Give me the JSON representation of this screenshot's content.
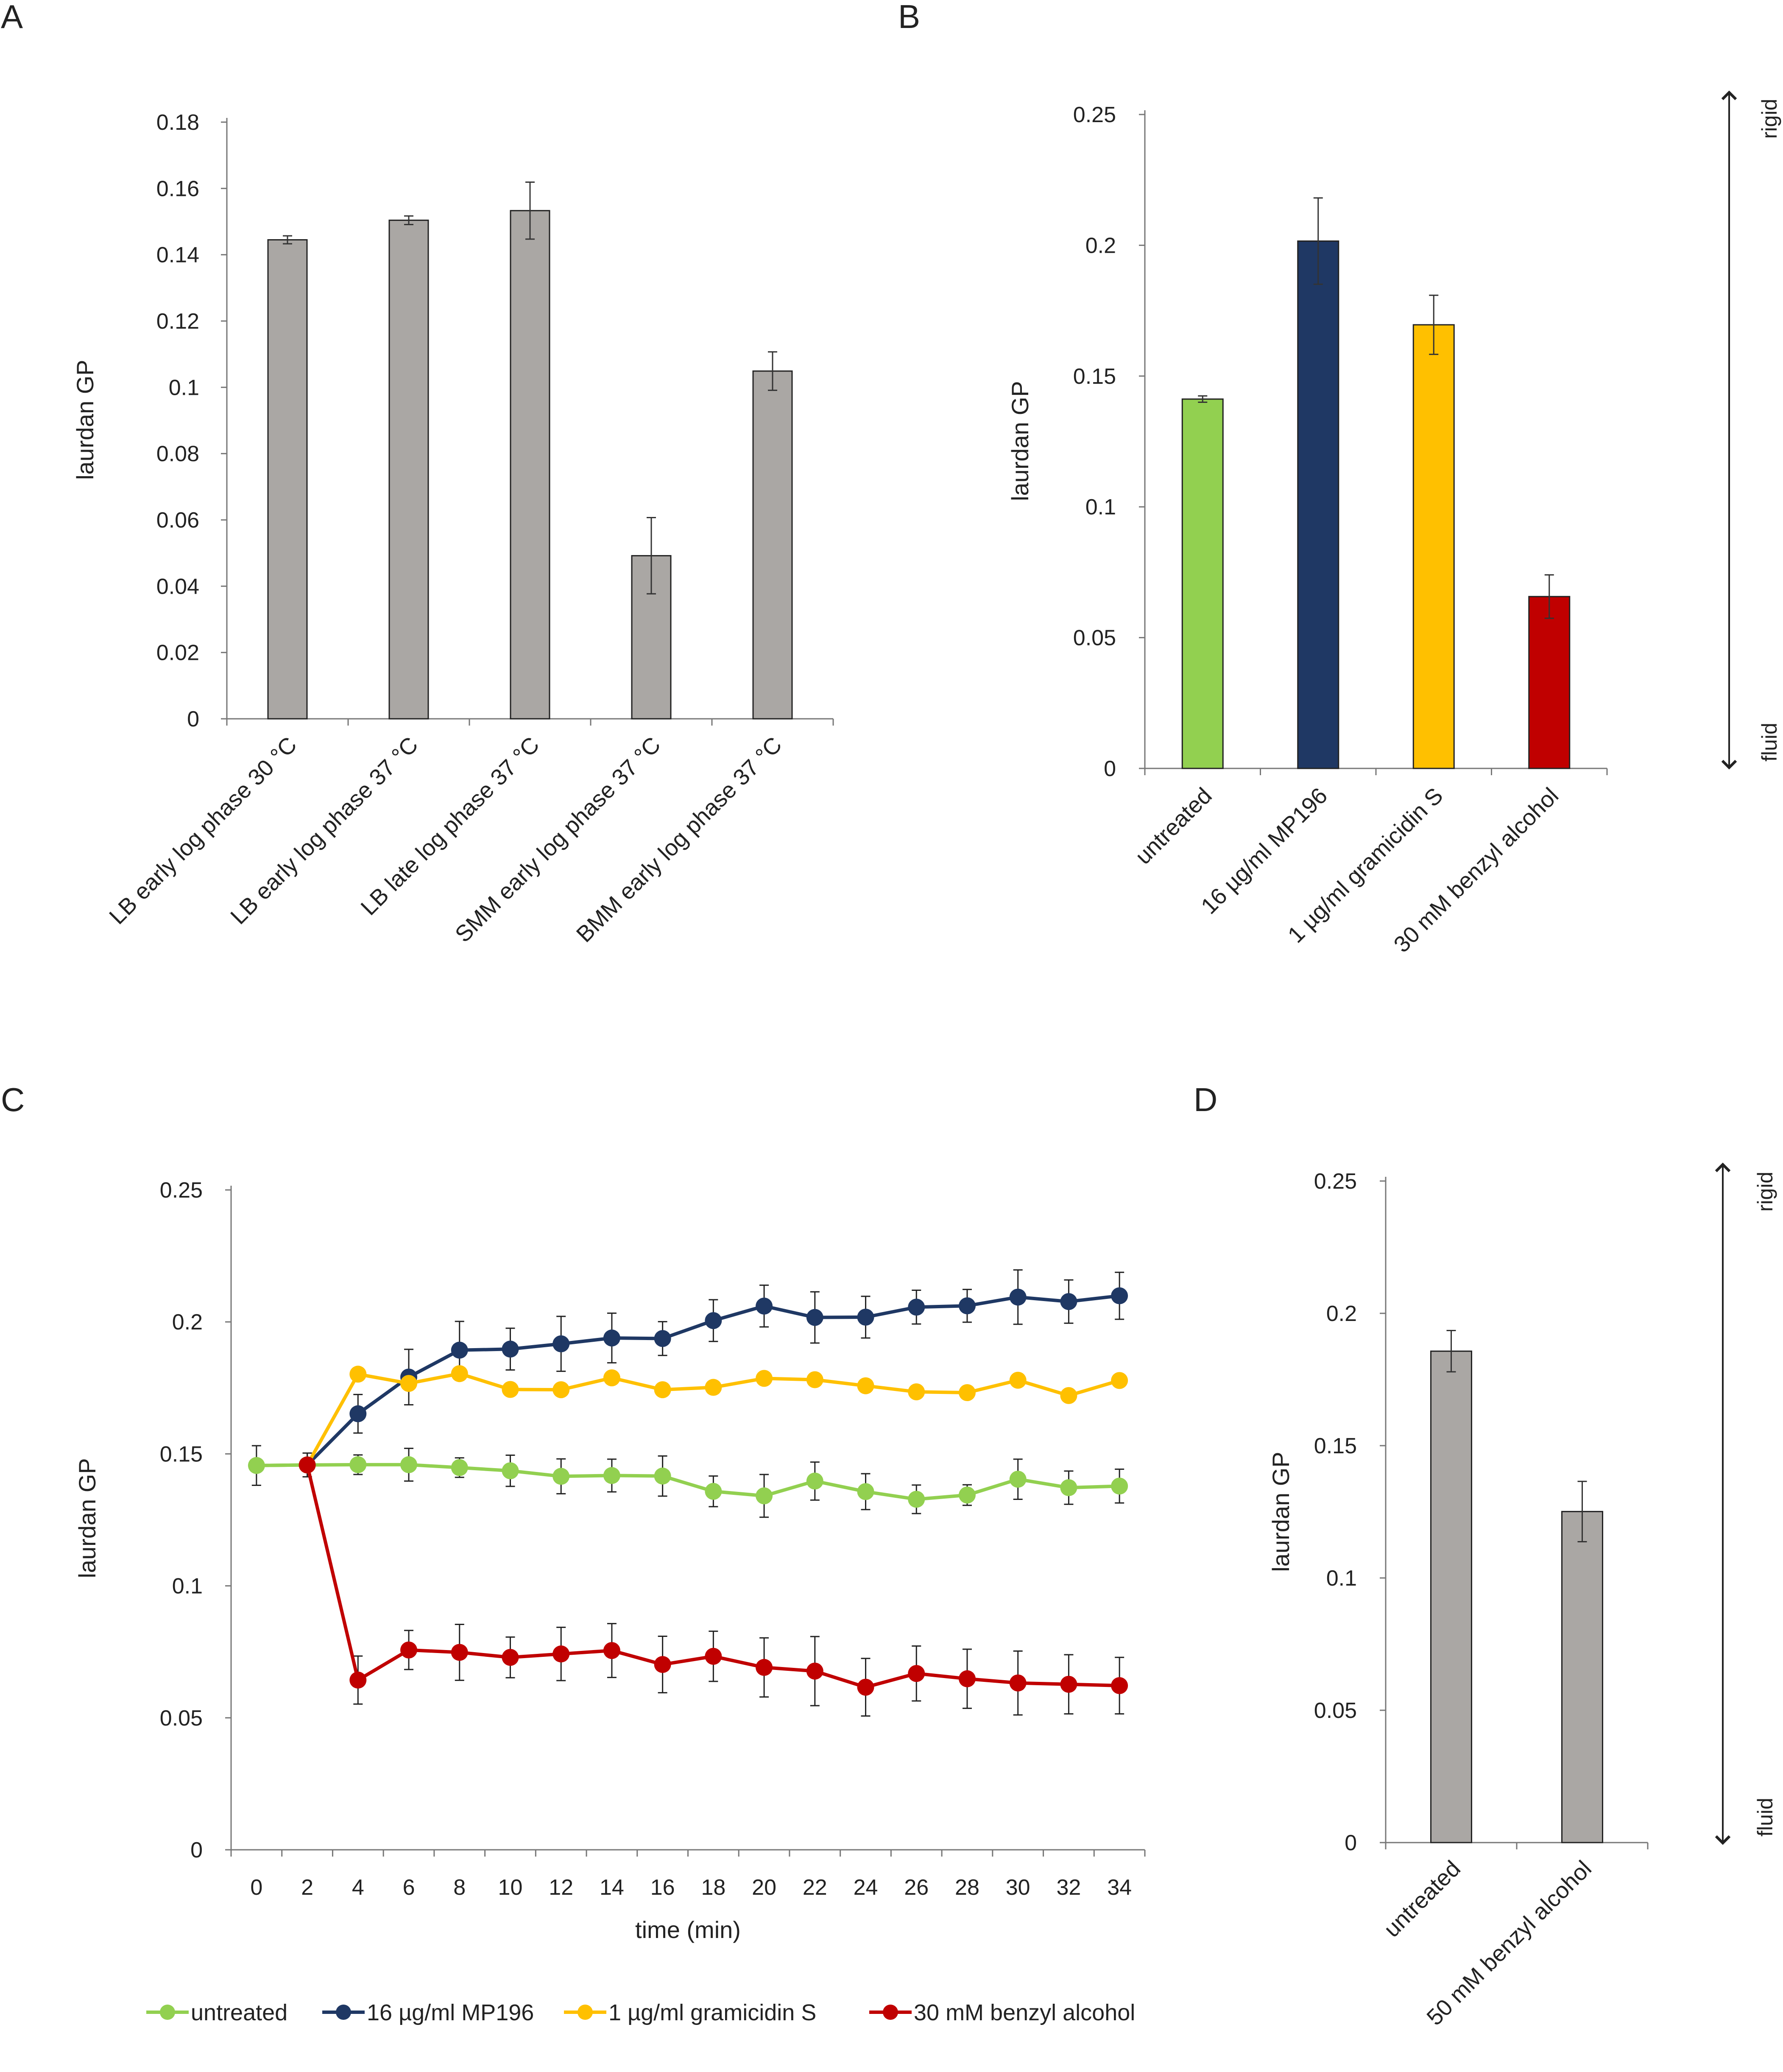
{
  "chart_data": [
    {
      "panel": "A",
      "type": "bar",
      "ylabel": "laurdan GP",
      "ylim": [
        0,
        0.18
      ],
      "yticks": [
        0,
        0.02,
        0.04,
        0.06,
        0.08,
        0.1,
        0.12,
        0.14,
        0.16,
        0.18
      ],
      "categories": [
        "LB early log phase 30 °C",
        "LB early log phase 37 °C",
        "LB late log phase 37 °C",
        "SMM early log phase 37 °C",
        "BMM early log phase 37 °C"
      ],
      "values": [
        0.1445,
        0.1504,
        0.1533,
        0.0492,
        0.1049
      ],
      "errors": [
        0.0012,
        0.0013,
        0.0086,
        0.0115,
        0.0058
      ],
      "color": "#aaa7a4"
    },
    {
      "panel": "B",
      "type": "bar",
      "ylabel": "laurdan GP",
      "ylim": [
        0,
        0.25
      ],
      "yticks": [
        0,
        0.05,
        0.1,
        0.15,
        0.2,
        0.25
      ],
      "categories": [
        "untreated",
        "16 µg/ml MP196",
        "1 µg/ml gramicidin S",
        "30 mM benzyl alcohol"
      ],
      "values": [
        0.1412,
        0.2016,
        0.1696,
        0.0657
      ],
      "errors": [
        0.0012,
        0.0165,
        0.0113,
        0.0083
      ],
      "colors": [
        "#92d050",
        "#1f3864",
        "#ffc000",
        "#c00000"
      ],
      "arrow_top": "rigid",
      "arrow_bottom": "fluid"
    },
    {
      "panel": "C",
      "type": "line",
      "xlabel": "time (min)",
      "ylabel": "laurdan GP",
      "ylim": [
        0,
        0.25
      ],
      "yticks": [
        0,
        0.05,
        0.1,
        0.15,
        0.2,
        0.25
      ],
      "x": [
        0,
        2,
        4,
        6,
        8,
        10,
        12,
        14,
        16,
        18,
        20,
        22,
        24,
        26,
        28,
        30,
        32,
        34
      ],
      "series": [
        {
          "name": "untreated",
          "color": "#92d050",
          "values": [
            0.1456,
            0.1458,
            0.1459,
            0.1459,
            0.1448,
            0.1436,
            0.1415,
            0.1418,
            0.1416,
            0.1358,
            0.1341,
            0.1397,
            0.1357,
            0.1328,
            0.1344,
            0.1404,
            0.1372,
            0.1378
          ],
          "errors": [
            0.0075,
            0.0045,
            0.0037,
            0.0062,
            0.0037,
            0.0059,
            0.0066,
            0.0062,
            0.0076,
            0.0058,
            0.0081,
            0.0072,
            0.0068,
            0.0054,
            0.0039,
            0.0076,
            0.0063,
            0.0064
          ]
        },
        {
          "name": "16 µg/ml MP196",
          "color": "#1f3864",
          "values": [
            null,
            0.1458,
            0.1652,
            0.1791,
            0.1893,
            0.1897,
            0.1917,
            0.1939,
            0.1937,
            0.2005,
            0.206,
            0.2017,
            0.2018,
            0.2056,
            0.2061,
            0.2094,
            0.2077,
            0.2099
          ],
          "errors": [
            null,
            0.0045,
            0.0073,
            0.0105,
            0.0109,
            0.0079,
            0.0104,
            0.0094,
            0.0064,
            0.0079,
            0.0079,
            0.0097,
            0.0079,
            0.0064,
            0.0062,
            0.0103,
            0.0082,
            0.0089
          ]
        },
        {
          "name": "1 µg/ml gramicidin S",
          "color": "#ffc000",
          "values": [
            null,
            0.1458,
            0.1802,
            0.1767,
            0.1804,
            0.1744,
            0.1743,
            0.1788,
            0.1743,
            0.1752,
            0.1786,
            0.1781,
            0.1758,
            0.1735,
            0.1732,
            0.1779,
            0.1721,
            0.1778
          ],
          "errors": [
            null,
            0.0045,
            0,
            0,
            0,
            0,
            0,
            0,
            0,
            0,
            0,
            0,
            0,
            0,
            0,
            0,
            0,
            0
          ]
        },
        {
          "name": "30 mM benzyl alcohol",
          "color": "#c00000",
          "values": [
            null,
            0.1458,
            0.0643,
            0.0757,
            0.0748,
            0.0729,
            0.0742,
            0.0755,
            0.0702,
            0.0733,
            0.0691,
            0.0677,
            0.0616,
            0.0668,
            0.0648,
            0.0632,
            0.0627,
            0.0622
          ],
          "errors": [
            null,
            0.0045,
            0.0091,
            0.0074,
            0.0106,
            0.0077,
            0.0101,
            0.0102,
            0.0107,
            0.0095,
            0.0112,
            0.0131,
            0.0109,
            0.0104,
            0.0112,
            0.0121,
            0.0112,
            0.0107
          ]
        }
      ]
    },
    {
      "panel": "D",
      "type": "bar",
      "ylabel": "laurdan GP",
      "ylim": [
        0,
        0.25
      ],
      "yticks": [
        0,
        0.05,
        0.1,
        0.15,
        0.2,
        0.25
      ],
      "categories": [
        "untreated",
        "50 mM benzyl alcohol"
      ],
      "values": [
        0.1857,
        0.1251
      ],
      "errors": [
        0.0078,
        0.0114
      ],
      "color": "#aaa7a4",
      "arrow_top": "rigid",
      "arrow_bottom": "fluid"
    }
  ],
  "panel_letters": [
    "A",
    "B",
    "C",
    "D"
  ]
}
